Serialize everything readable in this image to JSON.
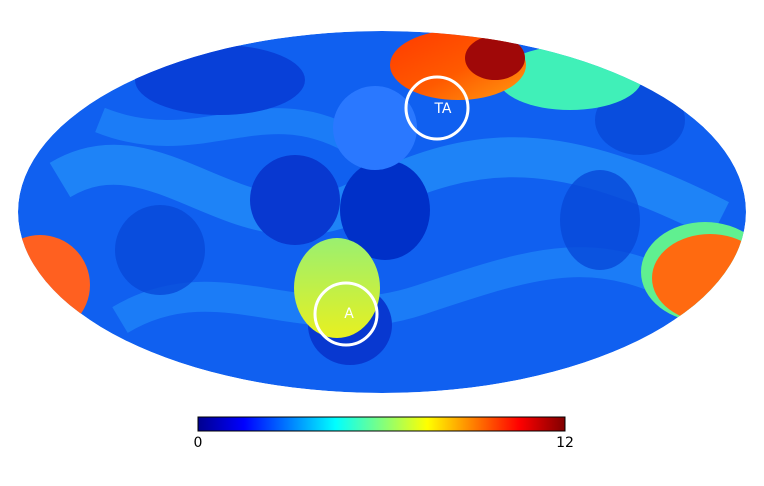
{
  "map": {
    "markers": [
      {
        "label": "TA"
      },
      {
        "label": "A"
      }
    ]
  },
  "colorbar": {
    "min": 0,
    "max": 12,
    "ticks": [
      0,
      12
    ]
  }
}
